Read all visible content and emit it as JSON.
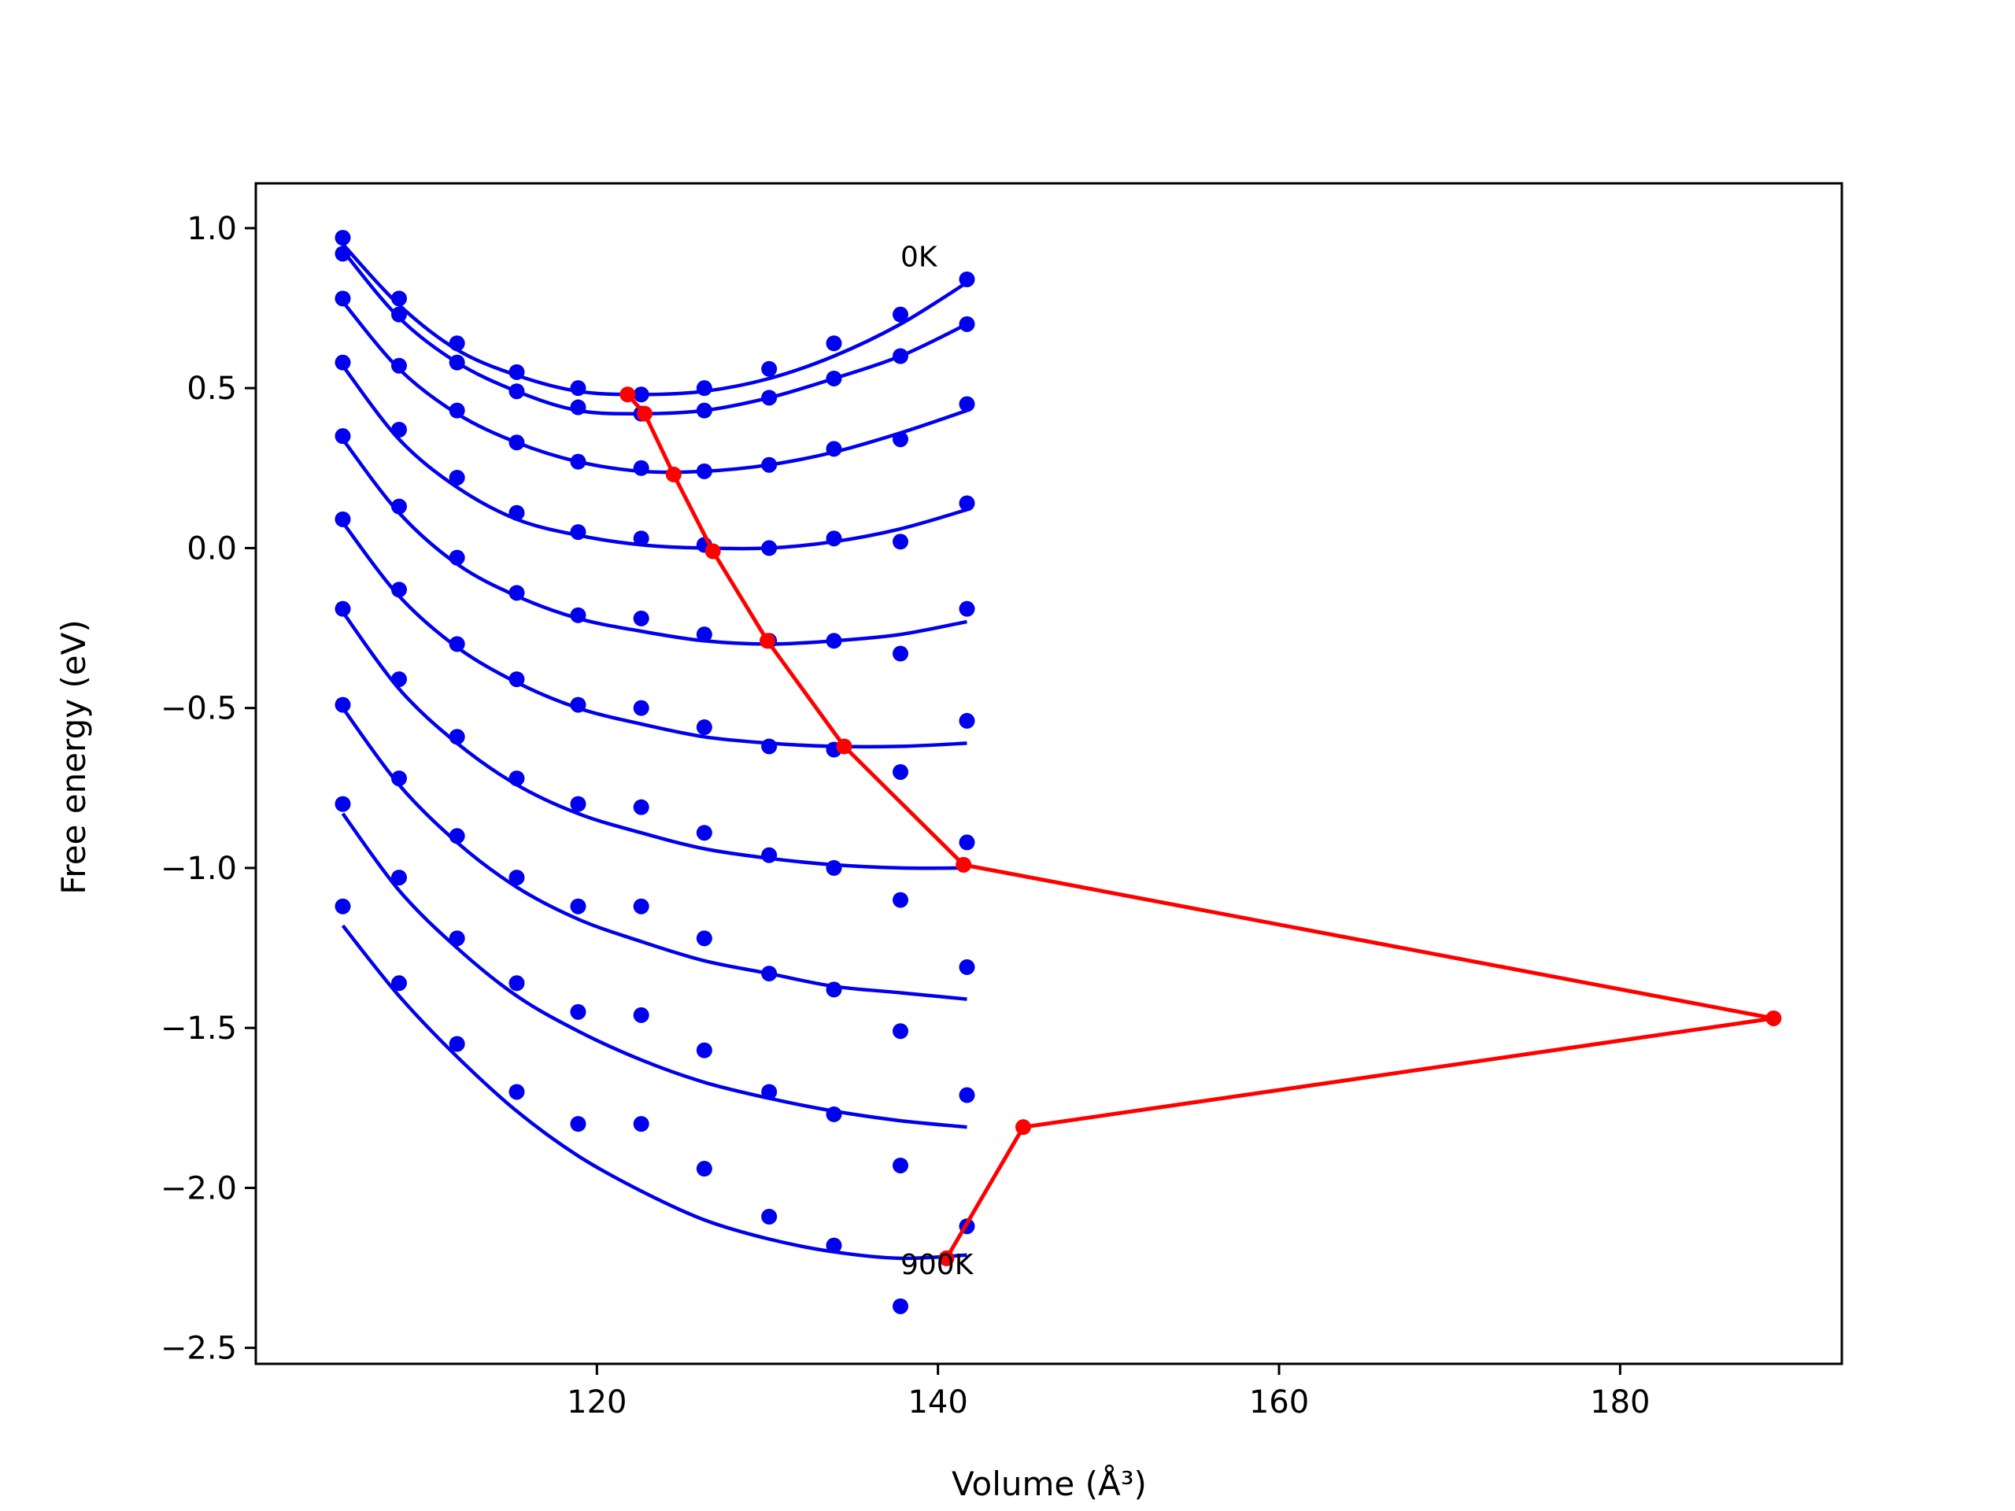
{
  "chart_data": {
    "type": "line",
    "xlabel": "Volume (Å³)",
    "ylabel": "Free energy (eV)",
    "xlim": [
      100,
      193
    ],
    "ylim": [
      -2.55,
      1.14
    ],
    "xticks": [
      120,
      140,
      160,
      180
    ],
    "yticks": [
      1.0,
      0.5,
      0.0,
      -0.5,
      -1.0,
      -1.5,
      -2.0,
      -2.5
    ],
    "xtick_labels": [
      "120",
      "140",
      "160",
      "180"
    ],
    "ytick_labels": [
      "1.0",
      "0.5",
      "0.0",
      "−0.5",
      "−1.0",
      "−1.5",
      "−2.0",
      "−2.5"
    ],
    "grid": false,
    "colors": {
      "fit": "#0000ee",
      "points": "#0000ee",
      "minima": "#ff0000",
      "frame": "#000000"
    },
    "annotations": [
      {
        "text": "0K",
        "x": 137.8,
        "y": 0.88
      },
      {
        "text": "900K",
        "x": 137.8,
        "y": -2.27
      }
    ],
    "volumes": [
      105.1,
      108.4,
      111.8,
      115.3,
      118.9,
      122.6,
      126.3,
      130.1,
      133.9,
      137.8,
      141.7
    ],
    "series": [
      {
        "points": [
          0.97,
          0.78,
          0.64,
          0.55,
          0.5,
          0.48,
          0.5,
          0.56,
          0.64,
          0.73,
          0.84
        ],
        "fit": [
          0.95,
          0.76,
          0.62,
          0.54,
          0.49,
          0.48,
          0.49,
          0.53,
          0.6,
          0.7,
          0.83
        ]
      },
      {
        "points": [
          0.92,
          0.73,
          0.58,
          0.49,
          0.44,
          0.42,
          0.43,
          0.47,
          0.53,
          0.6,
          0.7
        ],
        "fit": [
          0.93,
          0.72,
          0.58,
          0.49,
          0.43,
          0.42,
          0.43,
          0.47,
          0.53,
          0.6,
          0.7
        ]
      },
      {
        "points": [
          0.78,
          0.57,
          0.43,
          0.33,
          0.27,
          0.25,
          0.24,
          0.26,
          0.31,
          0.34,
          0.45
        ],
        "fit": [
          0.77,
          0.56,
          0.42,
          0.33,
          0.27,
          0.24,
          0.24,
          0.26,
          0.3,
          0.36,
          0.43
        ]
      },
      {
        "points": [
          0.58,
          0.37,
          0.22,
          0.11,
          0.05,
          0.03,
          0.01,
          0.0,
          0.03,
          0.02,
          0.14
        ],
        "fit": [
          0.57,
          0.34,
          0.19,
          0.09,
          0.04,
          0.01,
          0.0,
          0.0,
          0.02,
          0.06,
          0.12
        ]
      },
      {
        "points": [
          0.35,
          0.13,
          -0.03,
          -0.14,
          -0.21,
          -0.22,
          -0.27,
          -0.29,
          -0.29,
          -0.33,
          -0.19
        ],
        "fit": [
          0.34,
          0.11,
          -0.05,
          -0.15,
          -0.22,
          -0.26,
          -0.29,
          -0.3,
          -0.29,
          -0.27,
          -0.23
        ]
      },
      {
        "points": [
          0.09,
          -0.13,
          -0.3,
          -0.41,
          -0.49,
          -0.5,
          -0.56,
          -0.62,
          -0.63,
          -0.7,
          -0.54
        ],
        "fit": [
          0.08,
          -0.15,
          -0.31,
          -0.42,
          -0.5,
          -0.55,
          -0.59,
          -0.61,
          -0.62,
          -0.62,
          -0.61
        ]
      },
      {
        "points": [
          -0.19,
          -0.41,
          -0.59,
          -0.72,
          -0.8,
          -0.81,
          -0.89,
          -0.96,
          -1.0,
          -1.1,
          -0.92
        ],
        "fit": [
          -0.2,
          -0.44,
          -0.61,
          -0.74,
          -0.83,
          -0.89,
          -0.94,
          -0.97,
          -0.99,
          -1.0,
          -1.0
        ]
      },
      {
        "points": [
          -0.49,
          -0.72,
          -0.9,
          -1.03,
          -1.12,
          -1.12,
          -1.22,
          -1.33,
          -1.38,
          -1.51,
          -1.31
        ],
        "fit": [
          -0.5,
          -0.74,
          -0.92,
          -1.06,
          -1.16,
          -1.23,
          -1.29,
          -1.33,
          -1.37,
          -1.39,
          -1.41
        ]
      },
      {
        "points": [
          -0.8,
          -1.03,
          -1.22,
          -1.36,
          -1.45,
          -1.46,
          -1.57,
          -1.7,
          -1.77,
          -1.93,
          -1.71
        ],
        "fit": [
          -0.83,
          -1.07,
          -1.25,
          -1.4,
          -1.51,
          -1.6,
          -1.67,
          -1.72,
          -1.76,
          -1.79,
          -1.81
        ]
      },
      {
        "points": [
          -1.12,
          -1.36,
          -1.55,
          -1.7,
          -1.8,
          -1.8,
          -1.94,
          -2.09,
          -2.18,
          -2.37,
          -2.12
        ],
        "fit": [
          -1.18,
          -1.4,
          -1.59,
          -1.76,
          -1.9,
          -2.01,
          -2.1,
          -2.16,
          -2.2,
          -2.22,
          -2.21
        ]
      }
    ],
    "minima": {
      "x": [
        121.8,
        122.8,
        124.5,
        126.8,
        130.0,
        134.5,
        141.5,
        189.0,
        145.0,
        140.5
      ],
      "y": [
        0.48,
        0.42,
        0.23,
        -0.01,
        -0.29,
        -0.62,
        -0.99,
        -1.47,
        -1.81,
        -2.22
      ]
    }
  }
}
